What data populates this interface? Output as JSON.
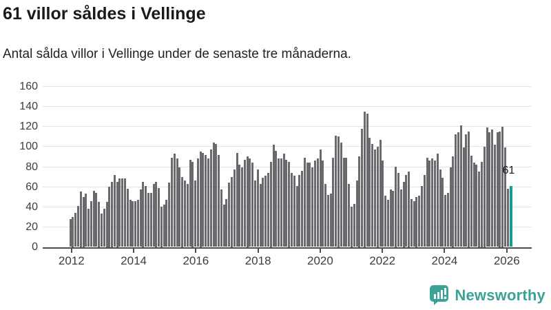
{
  "header": {
    "title": "61 villor såldes i Vellinge",
    "subtitle": "Antal sålda villor i Vellinge under de senaste tre månaderna."
  },
  "chart_data": {
    "type": "bar",
    "title": "61 villor såldes i Vellinge",
    "xlabel": "",
    "ylabel": "",
    "x_start": "2012-01",
    "x_end": "2026-02",
    "x_unit": "month",
    "ylim": [
      0,
      160
    ],
    "grid": true,
    "y_ticks": [
      0,
      20,
      40,
      60,
      80,
      100,
      120,
      140,
      160
    ],
    "x_tick_years": [
      2012,
      2014,
      2016,
      2018,
      2020,
      2022,
      2024,
      2026
    ],
    "bar_color": "#6a6a6e",
    "highlight_color": "#1a9a94",
    "highlight_index": 169,
    "highlight_label": "61",
    "values": [
      28,
      30,
      34,
      41,
      55,
      50,
      53,
      38,
      46,
      56,
      54,
      45,
      33,
      38,
      45,
      60,
      65,
      72,
      65,
      68,
      68,
      68,
      58,
      47,
      46,
      46,
      47,
      57,
      65,
      61,
      54,
      54,
      63,
      65,
      59,
      40,
      42,
      47,
      64,
      89,
      93,
      88,
      79,
      70,
      66,
      63,
      87,
      85,
      66,
      88,
      95,
      94,
      92,
      88,
      97,
      104,
      103,
      92,
      57,
      42,
      48,
      64,
      70,
      77,
      94,
      82,
      79,
      87,
      90,
      88,
      84,
      66,
      77,
      63,
      69,
      71,
      74,
      85,
      102,
      96,
      88,
      88,
      93,
      87,
      85,
      74,
      71,
      61,
      72,
      76,
      89,
      84,
      84,
      79,
      86,
      88,
      97,
      86,
      63,
      52,
      53,
      89,
      111,
      110,
      104,
      89,
      89,
      63,
      40,
      43,
      66,
      90,
      118,
      135,
      133,
      109,
      103,
      97,
      100,
      107,
      86,
      51,
      47,
      57,
      56,
      80,
      74,
      57,
      65,
      72,
      75,
      48,
      46,
      50,
      51,
      61,
      72,
      89,
      86,
      88,
      86,
      93,
      77,
      69,
      52,
      54,
      79,
      90,
      112,
      114,
      121,
      99,
      112,
      115,
      91,
      84,
      82,
      75,
      85,
      100,
      119,
      114,
      117,
      102,
      114,
      115,
      120,
      99,
      58,
      61
    ]
  },
  "footer": {
    "brand": "Newsworthy",
    "brand_color": "#3aa296"
  }
}
